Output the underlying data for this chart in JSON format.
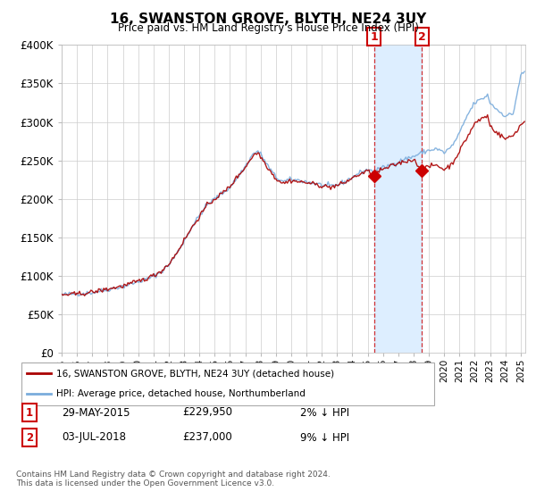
{
  "title": "16, SWANSTON GROVE, BLYTH, NE24 3UY",
  "subtitle": "Price paid vs. HM Land Registry's House Price Index (HPI)",
  "legend_line1": "16, SWANSTON GROVE, BLYTH, NE24 3UY (detached house)",
  "legend_line2": "HPI: Average price, detached house, Northumberland",
  "sale1_label": "1",
  "sale1_date": "29-MAY-2015",
  "sale1_price": 229950,
  "sale1_pct": "2% ↓ HPI",
  "sale2_label": "2",
  "sale2_date": "03-JUL-2018",
  "sale2_price": 237000,
  "sale2_pct": "9% ↓ HPI",
  "footer": "Contains HM Land Registry data © Crown copyright and database right 2024.\nThis data is licensed under the Open Government Licence v3.0.",
  "ylim": [
    0,
    400000
  ],
  "yticks": [
    0,
    50000,
    100000,
    150000,
    200000,
    250000,
    300000,
    350000,
    400000
  ],
  "ytick_labels": [
    "£0",
    "£50K",
    "£100K",
    "£150K",
    "£200K",
    "£250K",
    "£300K",
    "£350K",
    "£400K"
  ],
  "red_color": "#aa0000",
  "blue_color": "#7aacdc",
  "bg_color": "#ffffff",
  "grid_color": "#cccccc",
  "sale_box_color": "#cc0000",
  "highlight_color": "#ddeeff",
  "sale1_year": 2015.41,
  "sale2_year": 2018.54,
  "xmin": 1995.0,
  "xmax": 2025.3
}
